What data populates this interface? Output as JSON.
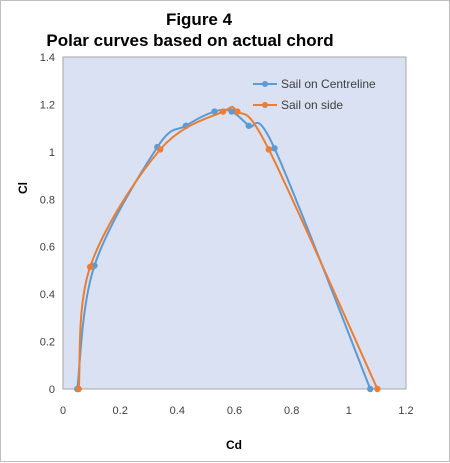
{
  "chart_data": {
    "type": "scatter",
    "title": "Figure 4",
    "subtitle": "Polar curves based on actual chord",
    "xlabel": "Cd",
    "ylabel": "Cl",
    "xlim": [
      0,
      1.2
    ],
    "ylim": [
      0,
      1.4
    ],
    "x_ticks": [
      "0",
      "0.2",
      "0.4",
      "0.6",
      "0.8",
      "1",
      "1.2"
    ],
    "y_ticks": [
      "0",
      "0.2",
      "0.4",
      "0.6",
      "0.8",
      "1",
      "1.2",
      "1.4"
    ],
    "grid": false,
    "plot_background": "#d9e1f2",
    "legend_position": "top-right",
    "series": [
      {
        "name": "Sail on Centreline",
        "color": "#5b9bd5",
        "points": [
          [
            0.05,
            0
          ],
          [
            0.11,
            0.52
          ],
          [
            0.33,
            1.02
          ],
          [
            0.43,
            1.11
          ],
          [
            0.53,
            1.17
          ],
          [
            0.59,
            1.17
          ],
          [
            0.65,
            1.11
          ],
          [
            0.74,
            1.015
          ],
          [
            1.075,
            0
          ]
        ]
      },
      {
        "name": "Sail on side",
        "color": "#ed7d31",
        "points": [
          [
            0.055,
            0
          ],
          [
            0.095,
            0.515
          ],
          [
            0.34,
            1.01
          ],
          [
            0.56,
            1.17
          ],
          [
            0.61,
            1.17
          ],
          [
            0.72,
            1.01
          ],
          [
            1.1,
            0
          ]
        ]
      }
    ]
  }
}
